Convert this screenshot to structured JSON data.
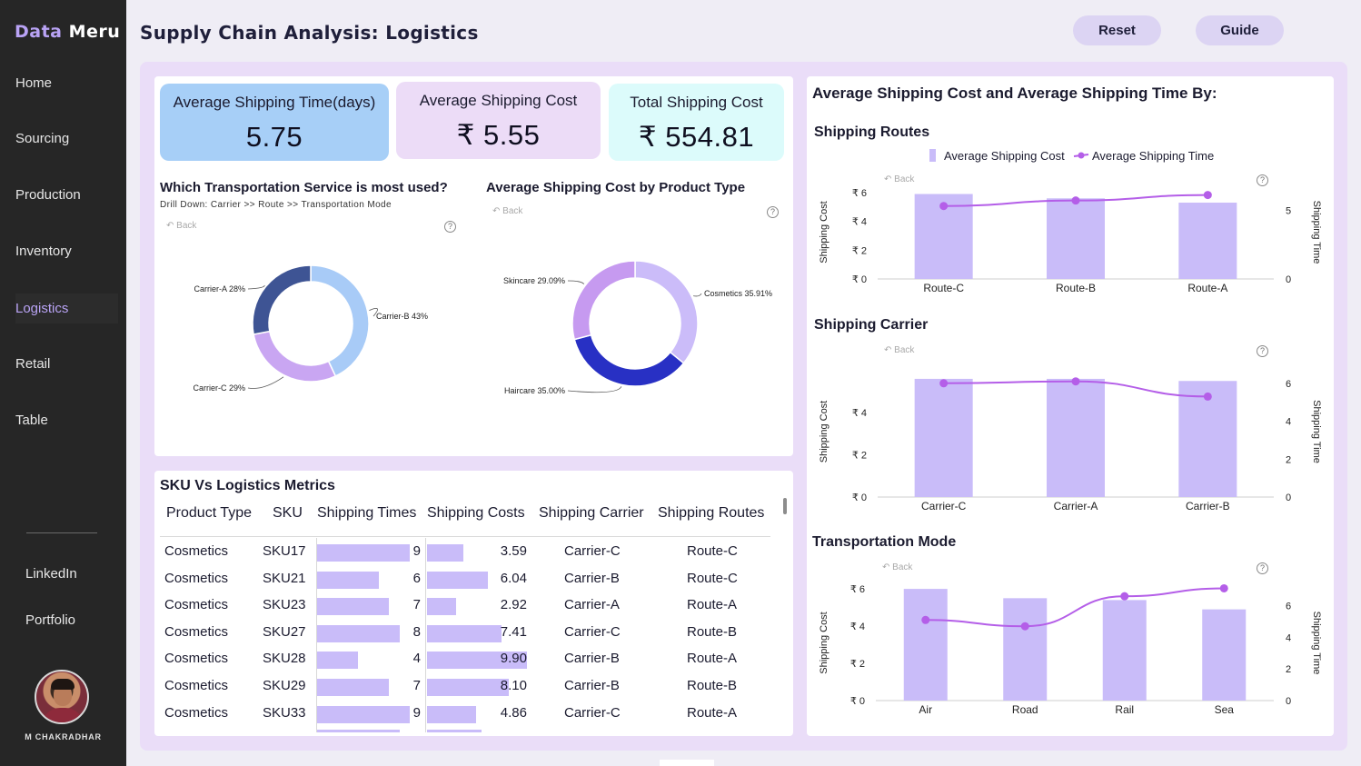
{
  "brand": {
    "part1": "Data",
    "part2": "Meru"
  },
  "sidebar": {
    "items": [
      "Home",
      "Sourcing",
      "Production",
      "Inventory",
      "Logistics",
      "Retail",
      "Table"
    ],
    "active": "Logistics",
    "links": [
      "LinkedIn",
      "Portfolio"
    ],
    "user_name": "M CHAKRADHAR"
  },
  "header": {
    "title": "Supply Chain Analysis: Logistics",
    "reset_label": "Reset",
    "guide_label": "Guide"
  },
  "kpis": [
    {
      "label": "Average Shipping Time(days)",
      "value": "5.75",
      "color": "#a7cff7"
    },
    {
      "label": "Average Shipping Cost",
      "value": "₹ 5.55",
      "color": "#ecdcf7"
    },
    {
      "label": "Total Shipping Cost",
      "value": "₹ 554.81",
      "color": "#dcfbfb"
    }
  ],
  "common": {
    "back_label": "Back",
    "help_glyph": "?"
  },
  "transport": {
    "title": "Which Transportation Service is most used?",
    "subtitle": "Drill Down: Carrier >> Route >> Transportation  Mode"
  },
  "product_cost": {
    "title": "Average Shipping Cost by Product Type"
  },
  "table": {
    "title": "SKU Vs Logistics Metrics",
    "columns": [
      "Product Type",
      "SKU",
      "Shipping Times",
      "Shipping Costs",
      "Shipping Carrier",
      "Shipping Routes"
    ],
    "rows": [
      {
        "product": "Cosmetics",
        "sku": "SKU17",
        "time": 9,
        "cost": "3.59",
        "carrier": "Carrier-C",
        "route": "Route-C"
      },
      {
        "product": "Cosmetics",
        "sku": "SKU21",
        "time": 6,
        "cost": "6.04",
        "carrier": "Carrier-B",
        "route": "Route-C"
      },
      {
        "product": "Cosmetics",
        "sku": "SKU23",
        "time": 7,
        "cost": "2.92",
        "carrier": "Carrier-A",
        "route": "Route-A"
      },
      {
        "product": "Cosmetics",
        "sku": "SKU27",
        "time": 8,
        "cost": "7.41",
        "carrier": "Carrier-C",
        "route": "Route-B"
      },
      {
        "product": "Cosmetics",
        "sku": "SKU28",
        "time": 4,
        "cost": "9.90",
        "carrier": "Carrier-B",
        "route": "Route-A"
      },
      {
        "product": "Cosmetics",
        "sku": "SKU29",
        "time": 7,
        "cost": "8.10",
        "carrier": "Carrier-B",
        "route": "Route-B"
      },
      {
        "product": "Cosmetics",
        "sku": "SKU33",
        "time": 9,
        "cost": "4.86",
        "carrier": "Carrier-C",
        "route": "Route-A"
      }
    ]
  },
  "right_panel": {
    "title": "Average Shipping Cost and Average Shipping Time By:",
    "legend": [
      "Average Shipping Cost",
      "Average Shipping Time"
    ],
    "y_left_label": "Shipping Cost",
    "y_right_label": "Shipping Time",
    "routes_title": "Shipping Routes",
    "carrier_title": "Shipping Carrier",
    "mode_title": "Transportation Mode"
  },
  "colors": {
    "bar": "#c9bcf9",
    "line": "#b45ee8",
    "donut_c1": "#a8cbf7",
    "donut_c2": "#3e5494",
    "donut_c3": "#c9a6f2",
    "prod_cosmetics": "#cbbcf9",
    "prod_haircare": "#2830c4",
    "prod_skincare": "#c69af0"
  },
  "chart_data": [
    {
      "type": "pie",
      "title": "Which Transportation Service is most used?",
      "labels": [
        "Carrier-B",
        "Carrier-C",
        "Carrier-A"
      ],
      "values": [
        43,
        29,
        28
      ],
      "slice_labels": [
        "Carrier-B 43%",
        "Carrier-C 29%",
        "Carrier-A 28%"
      ]
    },
    {
      "type": "pie",
      "title": "Average Shipping Cost by Product Type",
      "labels": [
        "Cosmetics",
        "Haircare",
        "Skincare"
      ],
      "values": [
        35.91,
        35.0,
        29.09
      ],
      "slice_labels": [
        "Cosmetics 35.91%",
        "Haircare 35.00%",
        "Skincare 29.09%"
      ]
    },
    {
      "type": "bar",
      "title": "Shipping Routes",
      "categories": [
        "Route-C",
        "Route-B",
        "Route-A"
      ],
      "series": [
        {
          "name": "Average Shipping Cost",
          "values": [
            5.9,
            5.6,
            5.3
          ]
        },
        {
          "name": "Average Shipping Time",
          "values": [
            5.3,
            5.7,
            6.1
          ]
        }
      ],
      "ylim": [
        0,
        6.5
      ],
      "y2lim": [
        0,
        6.8
      ],
      "yticks": [
        "₹ 0",
        "₹ 2",
        "₹ 4",
        "₹ 6"
      ],
      "y2ticks": [
        "0",
        "5"
      ],
      "y2tick_values": [
        0,
        5
      ]
    },
    {
      "type": "bar",
      "title": "Shipping Carrier",
      "categories": [
        "Carrier-C",
        "Carrier-A",
        "Carrier-B"
      ],
      "series": [
        {
          "name": "Average Shipping Cost",
          "values": [
            5.6,
            5.6,
            5.5
          ]
        },
        {
          "name": "Average Shipping Time",
          "values": [
            6.0,
            6.1,
            5.3
          ]
        }
      ],
      "ylim": [
        0,
        6.2
      ],
      "y2lim": [
        0,
        6.9
      ],
      "yticks": [
        "₹ 0",
        "₹ 2",
        "₹ 4"
      ],
      "ytick_values": [
        0,
        2,
        4
      ],
      "y2ticks": [
        "0",
        "2",
        "4",
        "6"
      ],
      "y2tick_values": [
        0,
        2,
        4,
        6
      ]
    },
    {
      "type": "bar",
      "title": "Transportation Mode",
      "categories": [
        "Air",
        "Road",
        "Rail",
        "Sea"
      ],
      "series": [
        {
          "name": "Average Shipping Cost",
          "values": [
            6.0,
            5.5,
            5.4,
            4.9
          ]
        },
        {
          "name": "Average Shipping Time",
          "values": [
            5.1,
            4.7,
            6.6,
            7.1
          ]
        }
      ],
      "ylim": [
        0,
        6.2
      ],
      "y2lim": [
        0,
        7.3
      ],
      "yticks": [
        "₹ 0",
        "₹ 2",
        "₹ 4",
        "₹ 6"
      ],
      "ytick_values": [
        0,
        2,
        4,
        6
      ],
      "y2ticks": [
        "0",
        "2",
        "4",
        "6"
      ],
      "y2tick_values": [
        0,
        2,
        4,
        6
      ]
    }
  ]
}
